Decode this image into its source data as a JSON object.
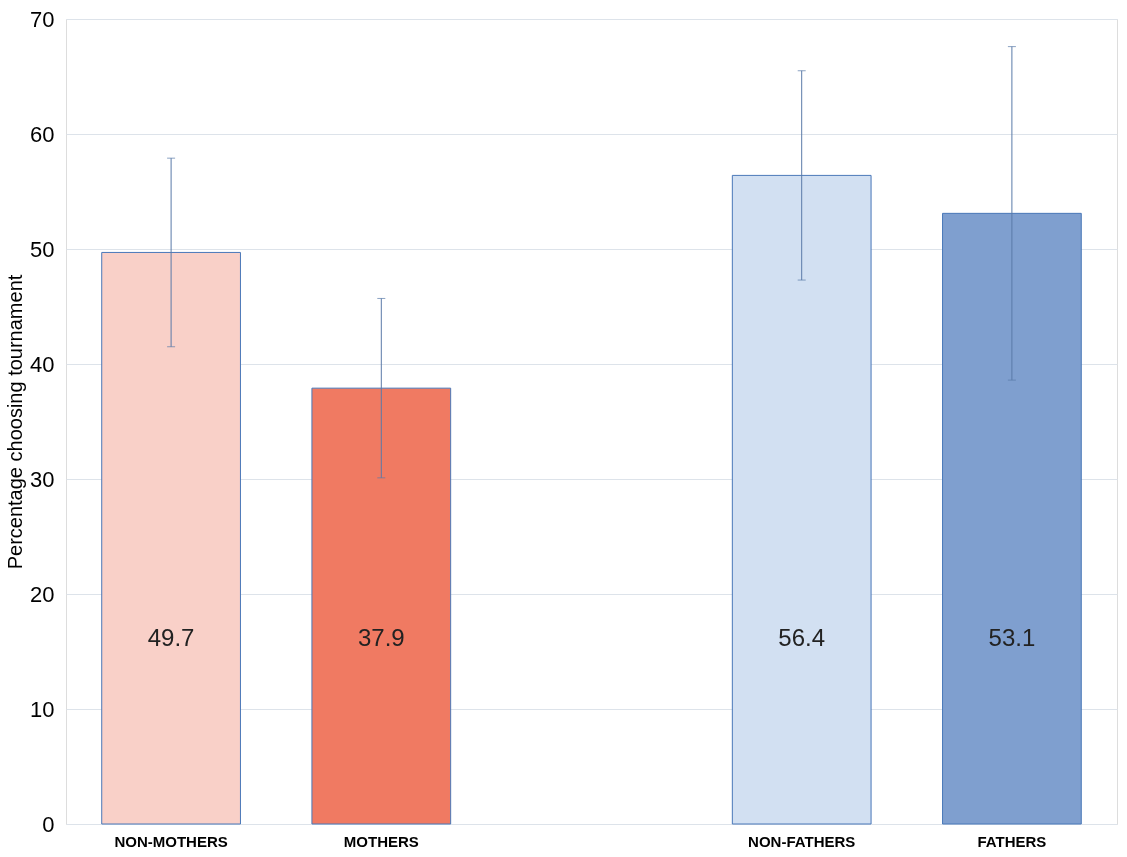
{
  "chart_data": {
    "type": "bar",
    "ylabel": "Percentage choosing tournament",
    "categories": [
      "NON-MOTHERS",
      "MOTHERS",
      null,
      "NON-FATHERS",
      "FATHERS"
    ],
    "values": [
      49.7,
      37.9,
      null,
      56.4,
      53.1
    ],
    "colors": [
      "#f9d0c8",
      "#f07a62",
      "#ffffff",
      "#d2e0f2",
      "#7f9fcf"
    ],
    "errors": [
      [
        41.5,
        57.9
      ],
      [
        30.1,
        45.7
      ],
      null,
      [
        47.3,
        65.5
      ],
      [
        38.6,
        67.6
      ]
    ],
    "ylim": [
      0,
      70
    ],
    "yticks": [
      0,
      10,
      20,
      30,
      40,
      50,
      60,
      70
    ],
    "grid": "y",
    "data_labels": true
  }
}
